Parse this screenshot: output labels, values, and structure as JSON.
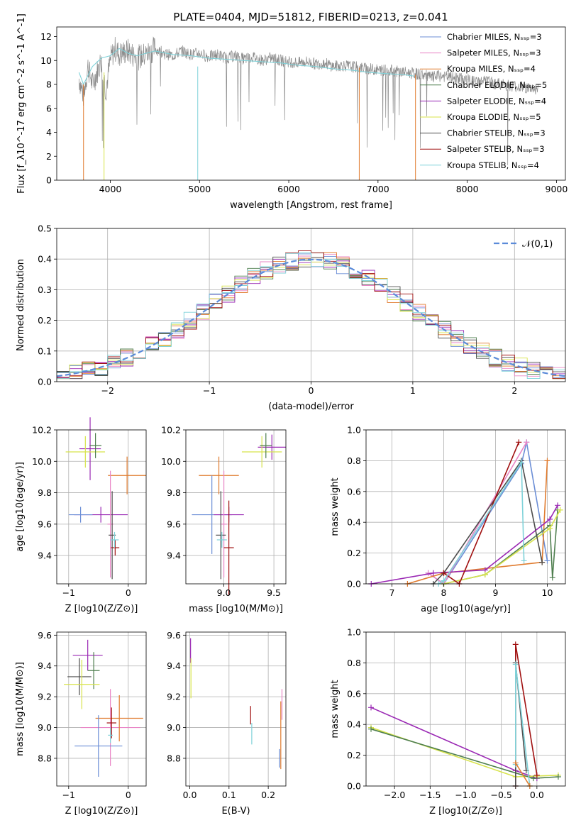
{
  "figure": {
    "title": "PLATE=0404, MJD=51812, FIBERID=0213, z=0.041"
  },
  "styles": [
    {
      "name": "Chabrier MILES",
      "color": "#6b8ed6"
    },
    {
      "name": "Salpeter MILES",
      "color": "#e986c6"
    },
    {
      "name": "Kroupa MILES",
      "color": "#e07b2e"
    },
    {
      "name": "Chabrier ELODIE",
      "color": "#4f7f4f"
    },
    {
      "name": "Salpeter ELODIE",
      "color": "#9a28b4"
    },
    {
      "name": "Kroupa ELODIE",
      "color": "#d7e34a"
    },
    {
      "name": "Chabrier STELIB",
      "color": "#4d4d4d"
    },
    {
      "name": "Salpeter STELIB",
      "color": "#a01010"
    },
    {
      "name": "Kroupa STELIB",
      "color": "#7fd2d9"
    }
  ],
  "chart_data": [
    {
      "id": "spectrum",
      "type": "line",
      "title": "PLATE=0404, MJD=51812, FIBERID=0213, z=0.041",
      "xlabel": "wavelength [Angstrom, rest frame]",
      "ylabel": "Flux [f_λ10^-17 erg cm^-2 s^-1 A^-1]",
      "xlim": [
        3400,
        9100
      ],
      "ylim": [
        0,
        12.8
      ],
      "xticks": [
        4000,
        5000,
        6000,
        7000,
        8000,
        9000
      ],
      "yticks": [
        0,
        2,
        4,
        6,
        8,
        10,
        12
      ],
      "grid": false,
      "legend_position": "top-right",
      "legend": [
        "Chabrier MILES, N_SSP=3",
        "Salpeter MILES, N_SSP=3",
        "Kroupa MILES, N_SSP=4",
        "Chabrier ELODIE, N_SSP=5",
        "Salpeter ELODIE, N_SSP=4",
        "Kroupa ELODIE, N_SSP=5",
        "Chabrier STELIB, N_SSP=3",
        "Salpeter STELIB, N_SSP=3",
        "Kroupa STELIB, N_SSP=4"
      ],
      "data_series": {
        "name": "data",
        "color": "#8c8c8c",
        "x": [
          3650,
          3700,
          3750,
          3800,
          3850,
          3900,
          3950,
          4000,
          4050,
          4100,
          4200,
          4300,
          4400,
          4500,
          4600,
          4700,
          4800,
          4900,
          5000,
          5100,
          5200,
          5300,
          5400,
          5500,
          5600,
          5700,
          5800,
          5900,
          6000,
          6100,
          6200,
          6300,
          6400,
          6500,
          6600,
          6700,
          6800,
          6900,
          7000,
          7100,
          7200,
          7300,
          7400,
          7500,
          7600,
          7700,
          7800,
          7900,
          8000,
          8100,
          8200,
          8300,
          8400,
          8500,
          8600,
          8700,
          8800
        ],
        "y": [
          8.5,
          7.0,
          9.5,
          8.0,
          9.0,
          10.0,
          7.5,
          10.0,
          11.0,
          10.5,
          10.8,
          10.2,
          10.5,
          11.0,
          10.6,
          10.4,
          10.8,
          10.5,
          10.6,
          10.3,
          10.5,
          10.2,
          10.4,
          10.1,
          10.3,
          10.0,
          10.2,
          10.0,
          9.9,
          9.8,
          9.9,
          9.7,
          9.8,
          9.5,
          9.6,
          9.5,
          9.4,
          9.3,
          9.2,
          9.2,
          9.1,
          9.0,
          8.9,
          8.8,
          8.6,
          8.7,
          8.6,
          8.5,
          8.4,
          8.2,
          8.3,
          8.1,
          8.0,
          7.9,
          7.8,
          7.7,
          7.6
        ]
      },
      "model_series": {
        "name": "Kroupa STELIB",
        "color": "#7fd2d9",
        "x": [
          3650,
          3700,
          3800,
          3900,
          4000,
          4100,
          4200,
          4300,
          4400,
          4500,
          4700,
          4900,
          5100,
          5300,
          5500,
          5700,
          5900,
          6100,
          6300,
          6500,
          6700,
          6900,
          7100,
          7300,
          7400
        ],
        "y": [
          9.0,
          8.0,
          9.5,
          10.2,
          10.4,
          11.0,
          10.6,
          10.4,
          10.6,
          10.8,
          10.5,
          10.4,
          10.2,
          10.1,
          10.0,
          9.9,
          9.8,
          9.6,
          9.5,
          9.3,
          9.2,
          9.0,
          8.9,
          8.8,
          8.7
        ]
      }
    },
    {
      "id": "residuals",
      "type": "line",
      "xlabel": "(data-model)/error",
      "ylabel": "Normed distribution",
      "xlim": [
        -2.5,
        2.5
      ],
      "ylim": [
        0,
        0.5
      ],
      "xticks": [
        -2,
        -1,
        0,
        1,
        2
      ],
      "yticks": [
        0.0,
        0.1,
        0.2,
        0.3,
        0.4,
        0.5
      ],
      "grid": true,
      "legend_position": "top-right",
      "legend": [
        "𝒩(0,1)"
      ],
      "normal_curve_color": "#5b8bd9"
    },
    {
      "id": "age-vs-Z",
      "type": "scatter",
      "xlabel": "Z [log10(Z/Z⊙)]",
      "ylabel": "age  [log10(age/yr)]",
      "xlim": [
        -1.2,
        0.3
      ],
      "ylim": [
        9.22,
        10.2
      ],
      "xticks": [
        -1,
        0
      ],
      "yticks": [
        9.4,
        9.6,
        9.8,
        10.0,
        10.2
      ],
      "grid": true,
      "points": [
        {
          "style": 4,
          "x": -0.64,
          "y": 10.08,
          "xerr": 0.18,
          "yerr": 0.2
        },
        {
          "style": 5,
          "x": -0.72,
          "y": 10.06,
          "xerr": 0.33,
          "yerr": 0.1
        },
        {
          "style": 3,
          "x": -0.55,
          "y": 10.1,
          "xerr": 0.1,
          "yerr": 0.08
        },
        {
          "style": 2,
          "x": -0.02,
          "y": 9.91,
          "xerr": 0.32,
          "yerr": 0.12
        },
        {
          "style": 4,
          "x": -0.46,
          "y": 9.66,
          "xerr": 0.45,
          "yerr": 0.05
        },
        {
          "style": 0,
          "x": -0.8,
          "y": 9.66,
          "xerr": 0.2,
          "yerr": 0.05
        },
        {
          "style": 1,
          "x": -0.3,
          "y": 9.6,
          "xerr": 0.05,
          "yerr": 0.34
        },
        {
          "style": 6,
          "x": -0.27,
          "y": 9.53,
          "xerr": 0.06,
          "yerr": 0.28
        },
        {
          "style": 7,
          "x": -0.22,
          "y": 9.45,
          "xerr": 0.07,
          "yerr": 0.05
        },
        {
          "style": 8,
          "x": -0.23,
          "y": 9.5,
          "xerr": 0.07,
          "yerr": 0.05
        }
      ]
    },
    {
      "id": "age-vs-mass",
      "type": "scatter",
      "xlabel": "mass [log10(M/M⊙)]",
      "xlim": [
        8.62,
        9.62
      ],
      "ylim": [
        9.22,
        10.2
      ],
      "xticks": [
        9.0,
        9.5
      ],
      "yticks": [
        9.4,
        9.6,
        9.8,
        10.0,
        10.2
      ],
      "grid": true,
      "points": [
        {
          "style": 4,
          "x": 9.48,
          "y": 10.09,
          "xerr": 0.14,
          "yerr": 0.08
        },
        {
          "style": 5,
          "x": 9.38,
          "y": 10.06,
          "xerr": 0.2,
          "yerr": 0.1
        },
        {
          "style": 3,
          "x": 9.42,
          "y": 10.1,
          "xerr": 0.06,
          "yerr": 0.08
        },
        {
          "style": 2,
          "x": 8.95,
          "y": 9.91,
          "xerr": 0.2,
          "yerr": 0.12
        },
        {
          "style": 0,
          "x": 8.88,
          "y": 9.66,
          "xerr": 0.2,
          "yerr": 0.25
        },
        {
          "style": 4,
          "x": 9.05,
          "y": 9.66,
          "xerr": 0.15,
          "yerr": 0.05
        },
        {
          "style": 1,
          "x": 9.0,
          "y": 9.6,
          "xerr": 0.03,
          "yerr": 0.34
        },
        {
          "style": 6,
          "x": 8.97,
          "y": 9.53,
          "xerr": 0.05,
          "yerr": 0.28
        },
        {
          "style": 7,
          "x": 9.05,
          "y": 9.45,
          "xerr": 0.05,
          "yerr": 0.3
        },
        {
          "style": 8,
          "x": 8.98,
          "y": 9.5,
          "xerr": 0.05,
          "yerr": 0.05
        }
      ]
    },
    {
      "id": "mass-weight-vs-age",
      "type": "line",
      "xlabel": "age  [log10(age/yr)]",
      "ylabel": "mass weight",
      "xlim": [
        6.5,
        10.35
      ],
      "ylim": [
        0,
        1.0
      ],
      "xticks": [
        7,
        8,
        9,
        10
      ],
      "yticks": [
        0.0,
        0.2,
        0.4,
        0.6,
        0.8,
        1.0
      ],
      "grid": true,
      "series": [
        {
          "style": 0,
          "x": [
            7.7,
            8.0,
            9.5,
            9.6,
            10.0
          ],
          "y": [
            0.07,
            0.0,
            0.78,
            0.92,
            0.15
          ]
        },
        {
          "style": 1,
          "x": [
            7.7,
            8.0,
            9.6
          ],
          "y": [
            0.07,
            0.0,
            0.92
          ]
        },
        {
          "style": 2,
          "x": [
            7.3,
            8.0,
            9.9,
            10.0
          ],
          "y": [
            0.0,
            0.07,
            0.14,
            0.8
          ]
        },
        {
          "style": 3,
          "x": [
            8.0,
            8.8,
            10.05,
            10.1,
            10.2
          ],
          "y": [
            0.0,
            0.06,
            0.38,
            0.04,
            0.48
          ]
        },
        {
          "style": 4,
          "x": [
            6.6,
            7.8,
            8.8,
            10.05,
            10.2
          ],
          "y": [
            0.0,
            0.07,
            0.09,
            0.42,
            0.51
          ]
        },
        {
          "style": 5,
          "x": [
            8.0,
            8.8,
            10.05,
            10.25
          ],
          "y": [
            0.0,
            0.06,
            0.36,
            0.48
          ]
        },
        {
          "style": 6,
          "x": [
            7.8,
            8.0,
            9.5,
            9.9
          ],
          "y": [
            0.0,
            0.07,
            0.8,
            0.14
          ]
        },
        {
          "style": 7,
          "x": [
            8.0,
            8.3,
            9.45
          ],
          "y": [
            0.07,
            0.0,
            0.92
          ]
        },
        {
          "style": 8,
          "x": [
            7.9,
            8.0,
            9.5,
            9.55
          ],
          "y": [
            0.0,
            0.02,
            0.79,
            0.15
          ]
        }
      ]
    },
    {
      "id": "mass-vs-Z",
      "type": "scatter",
      "xlabel": "Z [log10(Z/Z⊙)]",
      "ylabel": "mass [log10(M/M⊙)]",
      "xlim": [
        -1.2,
        0.3
      ],
      "ylim": [
        8.62,
        9.62
      ],
      "xticks": [
        -1,
        0
      ],
      "yticks": [
        8.8,
        9.0,
        9.2,
        9.4,
        9.6
      ],
      "grid": true,
      "points": [
        {
          "style": 4,
          "x": -0.68,
          "y": 9.47,
          "xerr": 0.25,
          "yerr": 0.1
        },
        {
          "style": 3,
          "x": -0.58,
          "y": 9.37,
          "xerr": 0.1,
          "yerr": 0.12
        },
        {
          "style": 6,
          "x": -0.82,
          "y": 9.33,
          "xerr": 0.2,
          "yerr": 0.12
        },
        {
          "style": 5,
          "x": -0.78,
          "y": 9.28,
          "xerr": 0.3,
          "yerr": 0.16
        },
        {
          "style": 1,
          "x": -0.3,
          "y": 9.0,
          "xerr": 0.5,
          "yerr": 0.25
        },
        {
          "style": 2,
          "x": -0.15,
          "y": 9.06,
          "xerr": 0.4,
          "yerr": 0.15
        },
        {
          "style": 0,
          "x": -0.5,
          "y": 8.88,
          "xerr": 0.4,
          "yerr": 0.2
        },
        {
          "style": 7,
          "x": -0.28,
          "y": 9.03,
          "xerr": 0.08,
          "yerr": 0.1
        },
        {
          "style": 8,
          "x": -0.3,
          "y": 8.95,
          "xerr": 0.04,
          "yerr": 0.05
        }
      ]
    },
    {
      "id": "mass-vs-EBV",
      "type": "scatter",
      "xlabel": "E(B-V)",
      "xlim": [
        -0.01,
        0.245
      ],
      "ylim": [
        8.62,
        9.62
      ],
      "xticks": [
        0.0,
        0.1,
        0.2
      ],
      "yticks": [
        8.8,
        9.0,
        9.2,
        9.4,
        9.6
      ],
      "grid": true,
      "points": [
        {
          "style": 4,
          "x": 0.002,
          "y": 9.5,
          "xerr": 0.0,
          "yerr": 0.08
        },
        {
          "style": 5,
          "x": 0.003,
          "y": 9.32,
          "xerr": 0.0,
          "yerr": 0.13
        },
        {
          "style": 7,
          "x": 0.155,
          "y": 9.08,
          "xerr": 0.0,
          "yerr": 0.06
        },
        {
          "style": 8,
          "x": 0.158,
          "y": 8.96,
          "xerr": 0.0,
          "yerr": 0.07
        },
        {
          "style": 2,
          "x": 0.232,
          "y": 8.95,
          "xerr": 0.0,
          "yerr": 0.22
        },
        {
          "style": 1,
          "x": 0.235,
          "y": 9.15,
          "xerr": 0.0,
          "yerr": 0.1
        },
        {
          "style": 0,
          "x": 0.229,
          "y": 8.8,
          "xerr": 0.0,
          "yerr": 0.06
        }
      ]
    },
    {
      "id": "mass-weight-vs-Z",
      "type": "line",
      "xlabel": "Z [log10(Z/Z⊙)]",
      "ylabel": "mass weight",
      "xlim": [
        -2.4,
        0.4
      ],
      "ylim": [
        0,
        1.0
      ],
      "xticks": [
        -2.0,
        -1.5,
        -1.0,
        -0.5,
        0.0
      ],
      "yticks": [
        0.0,
        0.2,
        0.4,
        0.6,
        0.8,
        1.0
      ],
      "grid": true,
      "series": [
        {
          "style": 4,
          "x": [
            -2.33,
            -0.3,
            0.0
          ],
          "y": [
            0.51,
            0.1,
            0.05
          ]
        },
        {
          "style": 5,
          "x": [
            -2.33,
            -0.3,
            0.3
          ],
          "y": [
            0.38,
            0.06,
            0.07
          ]
        },
        {
          "style": 3,
          "x": [
            -2.33,
            -0.05,
            0.3
          ],
          "y": [
            0.37,
            0.05,
            0.06
          ]
        },
        {
          "style": 7,
          "x": [
            -0.3,
            -0.3,
            0.0
          ],
          "y": [
            0.0,
            0.92,
            0.07
          ]
        },
        {
          "style": 6,
          "x": [
            -0.3,
            -0.3,
            -0.15
          ],
          "y": [
            0.0,
            0.8,
            0.1
          ]
        },
        {
          "style": 8,
          "x": [
            -0.3,
            -0.3,
            -0.1
          ],
          "y": [
            0.14,
            0.79,
            0.0
          ]
        },
        {
          "style": 2,
          "x": [
            -0.3,
            -0.1
          ],
          "y": [
            0.15,
            0.0
          ]
        }
      ]
    }
  ]
}
